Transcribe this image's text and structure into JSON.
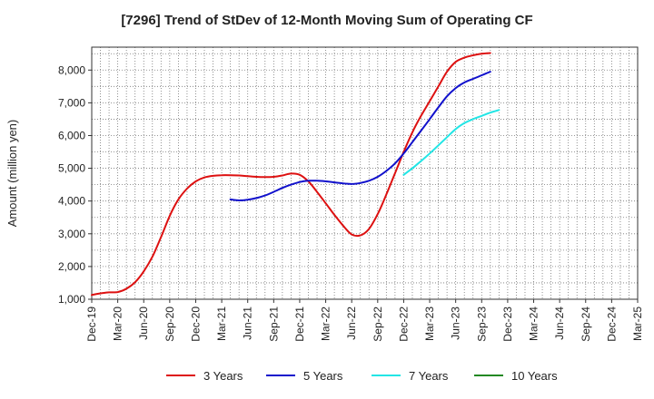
{
  "chart_data": {
    "type": "line",
    "title": "[7296]  Trend of StDev of 12-Month Moving Sum of Operating CF",
    "xlabel": "",
    "ylabel": "Amount (million yen)",
    "ylim": [
      1000,
      8700
    ],
    "yticks": [
      1000,
      2000,
      3000,
      4000,
      5000,
      6000,
      7000,
      8000
    ],
    "ytick_labels": [
      "1,000",
      "2,000",
      "3,000",
      "4,000",
      "5,000",
      "6,000",
      "7,000",
      "8,000"
    ],
    "x_categories": [
      "Dec-19",
      "Mar-20",
      "Jun-20",
      "Sep-20",
      "Dec-20",
      "Mar-21",
      "Jun-21",
      "Sep-21",
      "Dec-21",
      "Mar-22",
      "Jun-22",
      "Sep-22",
      "Dec-22",
      "Mar-23",
      "Jun-23",
      "Sep-23",
      "Dec-23",
      "Mar-24",
      "Jun-24",
      "Sep-24",
      "Dec-24",
      "Mar-25"
    ],
    "grid": true,
    "legend_position": "bottom",
    "series": [
      {
        "name": "3 Years",
        "color": "#dd1111",
        "points": [
          [
            0,
            1130
          ],
          [
            1,
            1180
          ],
          [
            2,
            1210
          ],
          [
            3,
            1220
          ],
          [
            4,
            1320
          ],
          [
            5,
            1520
          ],
          [
            6,
            1850
          ],
          [
            7,
            2300
          ],
          [
            8,
            2900
          ],
          [
            9,
            3550
          ],
          [
            10,
            4050
          ],
          [
            11,
            4380
          ],
          [
            12,
            4600
          ],
          [
            13,
            4720
          ],
          [
            14,
            4770
          ],
          [
            15,
            4790
          ],
          [
            16,
            4790
          ],
          [
            17,
            4780
          ],
          [
            18,
            4760
          ],
          [
            19,
            4740
          ],
          [
            20,
            4730
          ],
          [
            21,
            4740
          ],
          [
            22,
            4780
          ],
          [
            23,
            4840
          ],
          [
            24,
            4800
          ],
          [
            25,
            4600
          ],
          [
            26,
            4280
          ],
          [
            27,
            3930
          ],
          [
            28,
            3580
          ],
          [
            29,
            3250
          ],
          [
            30,
            2980
          ],
          [
            31,
            2950
          ],
          [
            32,
            3150
          ],
          [
            33,
            3600
          ],
          [
            34,
            4200
          ],
          [
            35,
            4850
          ],
          [
            36,
            5500
          ],
          [
            37,
            6100
          ],
          [
            38,
            6600
          ],
          [
            39,
            7050
          ],
          [
            40,
            7500
          ],
          [
            41,
            7950
          ],
          [
            42,
            8250
          ],
          [
            43,
            8380
          ],
          [
            44,
            8450
          ],
          [
            45,
            8500
          ],
          [
            46,
            8520
          ]
        ]
      },
      {
        "name": "5 Years",
        "color": "#1111cc",
        "points": [
          [
            16,
            4050
          ],
          [
            17,
            4020
          ],
          [
            18,
            4040
          ],
          [
            19,
            4090
          ],
          [
            20,
            4170
          ],
          [
            21,
            4280
          ],
          [
            22,
            4400
          ],
          [
            23,
            4500
          ],
          [
            24,
            4580
          ],
          [
            25,
            4620
          ],
          [
            26,
            4620
          ],
          [
            27,
            4600
          ],
          [
            28,
            4570
          ],
          [
            29,
            4540
          ],
          [
            30,
            4520
          ],
          [
            31,
            4550
          ],
          [
            32,
            4620
          ],
          [
            33,
            4740
          ],
          [
            34,
            4920
          ],
          [
            35,
            5150
          ],
          [
            36,
            5450
          ],
          [
            37,
            5800
          ],
          [
            38,
            6150
          ],
          [
            39,
            6500
          ],
          [
            40,
            6860
          ],
          [
            41,
            7200
          ],
          [
            42,
            7450
          ],
          [
            43,
            7620
          ],
          [
            44,
            7730
          ],
          [
            45,
            7840
          ],
          [
            46,
            7950
          ]
        ]
      },
      {
        "name": "7 Years",
        "color": "#22e5e5",
        "points": [
          [
            36,
            4800
          ],
          [
            37,
            5000
          ],
          [
            38,
            5220
          ],
          [
            39,
            5450
          ],
          [
            40,
            5700
          ],
          [
            41,
            5950
          ],
          [
            42,
            6200
          ],
          [
            43,
            6380
          ],
          [
            44,
            6500
          ],
          [
            45,
            6600
          ],
          [
            46,
            6700
          ],
          [
            47,
            6780
          ]
        ]
      },
      {
        "name": "10 Years",
        "color": "#228822",
        "points": []
      }
    ]
  }
}
